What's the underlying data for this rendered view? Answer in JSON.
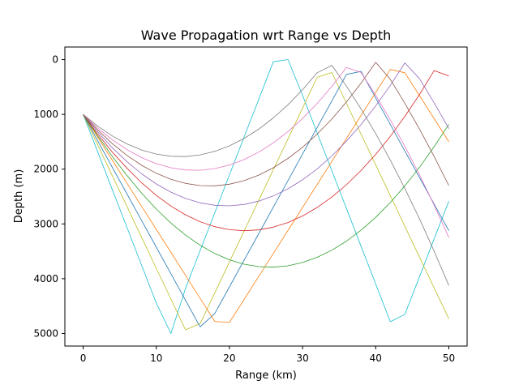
{
  "chart_data": {
    "type": "line",
    "title": "Wave Propagation wrt Range vs Depth",
    "xlabel": "Range (km)",
    "ylabel": "Depth (m)",
    "xlim": [
      -2.5,
      52.5
    ],
    "ylim": [
      5230,
      -230
    ],
    "y_inverted": true,
    "grid": false,
    "legend": "none",
    "xticks": [
      0,
      10,
      20,
      30,
      40,
      50
    ],
    "yticks": [
      0,
      1000,
      2000,
      3000,
      4000,
      5000
    ],
    "xtick_labels": [
      "0",
      "10",
      "20",
      "30",
      "40",
      "50"
    ],
    "ytick_labels": [
      "0",
      "1000",
      "2000",
      "3000",
      "4000",
      "5000"
    ],
    "x": [
      0,
      2,
      4,
      6,
      8,
      10,
      12,
      14,
      16,
      18,
      20,
      22,
      24,
      26,
      28,
      30,
      32,
      34,
      36,
      38,
      40,
      42,
      44,
      46,
      48,
      50
    ],
    "series": [
      {
        "color": "#17becf",
        "values": [
          1000,
          1689,
          2378,
          3068,
          3757,
          4446,
          5000,
          4175,
          3486,
          2796,
          2107,
          1418,
          729,
          40,
          0,
          650,
          1339,
          2028,
          2718,
          3407,
          4096,
          4786,
          4650,
          3961,
          3272,
          2583
        ]
      },
      {
        "color": "#bcbd22",
        "values": [
          1000,
          1562,
          2124,
          2686,
          3248,
          3810,
          4372,
          4934,
          4820,
          4258,
          3696,
          3134,
          2572,
          2010,
          1448,
          886,
          324,
          236,
          798,
          1360,
          1922,
          2484,
          3046,
          3608,
          4170,
          4732
        ]
      },
      {
        "color": "#1f77b4",
        "values": [
          1000,
          1485,
          1970,
          2455,
          2940,
          3425,
          3910,
          4395,
          4880,
          4635,
          4150,
          3665,
          3180,
          2695,
          2210,
          1725,
          1240,
          755,
          270,
          215,
          700,
          1185,
          1670,
          2155,
          2640,
          3125
        ]
      },
      {
        "color": "#ff7f0e",
        "values": [
          1000,
          1420,
          1840,
          2260,
          2680,
          3100,
          3520,
          3940,
          4360,
          4780,
          4800,
          4380,
          3960,
          3540,
          3120,
          2700,
          2280,
          1860,
          1440,
          1020,
          600,
          180,
          240,
          660,
          1080,
          1500
        ]
      },
      {
        "color": "#2ca02c",
        "values": [
          1000,
          1395,
          1770,
          2120,
          2440,
          2730,
          2985,
          3205,
          3390,
          3540,
          3655,
          3735,
          3780,
          3790,
          3765,
          3705,
          3610,
          3480,
          3315,
          3115,
          2880,
          2610,
          2305,
          1965,
          1590,
          1180
        ]
      },
      {
        "color": "#d62728",
        "values": [
          1000,
          1360,
          1690,
          1985,
          2250,
          2480,
          2675,
          2835,
          2960,
          3050,
          3105,
          3125,
          3110,
          3060,
          2975,
          2855,
          2700,
          2510,
          2285,
          2025,
          1730,
          1400,
          1035,
          635,
          200,
          300
        ]
      },
      {
        "color": "#9467bd",
        "values": [
          1000,
          1320,
          1610,
          1865,
          2085,
          2270,
          2420,
          2535,
          2615,
          2660,
          2670,
          2645,
          2585,
          2490,
          2360,
          2195,
          1995,
          1760,
          1490,
          1185,
          845,
          470,
          60,
          350,
          790,
          1260
        ]
      },
      {
        "color": "#8c564b",
        "values": [
          1000,
          1285,
          1535,
          1750,
          1930,
          2075,
          2185,
          2260,
          2300,
          2305,
          2275,
          2210,
          2110,
          1975,
          1805,
          1600,
          1360,
          1085,
          775,
          430,
          50,
          360,
          800,
          1270,
          1770,
          2300
        ]
      },
      {
        "color": "#e377c2",
        "values": [
          1000,
          1250,
          1465,
          1645,
          1790,
          1900,
          1975,
          2015,
          2020,
          1990,
          1925,
          1825,
          1690,
          1520,
          1315,
          1075,
          800,
          490,
          145,
          235,
          650,
          1100,
          1585,
          2105,
          2660,
          3250
        ]
      },
      {
        "color": "#7f7f7f",
        "values": [
          1000,
          1215,
          1395,
          1540,
          1650,
          1725,
          1765,
          1770,
          1740,
          1675,
          1575,
          1440,
          1270,
          1065,
          825,
          550,
          240,
          105,
          485,
          900,
          1350,
          1835,
          2355,
          2910,
          3500,
          4125
        ]
      }
    ]
  }
}
